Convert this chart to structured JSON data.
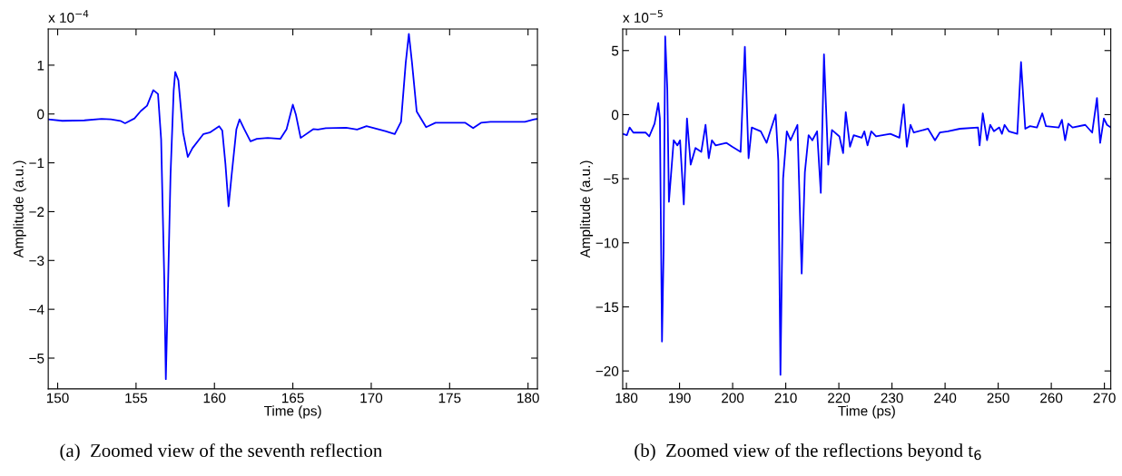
{
  "chart_data": [
    {
      "type": "line",
      "xlabel": "Time (ps)",
      "ylabel": "Amplitude (a.u.)",
      "xlim": [
        149.4,
        180.6
      ],
      "ylim": [
        -5.63,
        1.74
      ],
      "xticks": [
        150,
        155,
        160,
        165,
        170,
        175,
        180
      ],
      "yticks": [
        {
          "value": -5,
          "label": "−5"
        },
        {
          "value": -4,
          "label": "−4"
        },
        {
          "value": -3,
          "label": "−3"
        },
        {
          "value": -2,
          "label": "−2"
        },
        {
          "value": -1,
          "label": "−1"
        },
        0,
        1
      ],
      "grid": false,
      "legend": false,
      "annotations": [
        "x 10$^{−4}$",
        "(a)  Zoomed view of the seventh reflection"
      ],
      "series": [
        {
          "color": "#0000ff",
          "x": [
            149.4,
            150.3,
            151.7,
            152.8,
            153.4,
            154.0,
            154.3,
            154.9,
            155.3,
            155.7,
            156.1,
            156.4,
            156.6,
            156.8,
            156.9,
            157.0,
            157.2,
            157.4,
            157.5,
            157.7,
            158.0,
            158.3,
            158.6,
            159.3,
            159.7,
            160.3,
            160.5,
            160.7,
            160.9,
            161.1,
            161.4,
            161.6,
            161.9,
            162.3,
            162.7,
            163.4,
            164.2,
            164.6,
            165.0,
            165.2,
            165.5,
            166.3,
            166.6,
            167.1,
            168.4,
            169.1,
            169.7,
            170.9,
            171.5,
            171.9,
            172.2,
            172.4,
            172.6,
            172.9,
            173.5,
            174.1,
            176.0,
            176.5,
            177.0,
            177.6,
            179.8,
            180.4,
            180.6
          ],
          "values": [
            -0.11,
            -0.14,
            -0.13,
            -0.1,
            -0.11,
            -0.14,
            -0.19,
            -0.09,
            0.06,
            0.17,
            0.49,
            0.41,
            -0.52,
            -3.38,
            -5.43,
            -4.09,
            -1.24,
            0.48,
            0.86,
            0.69,
            -0.38,
            -0.88,
            -0.7,
            -0.41,
            -0.38,
            -0.25,
            -0.34,
            -1.02,
            -1.89,
            -1.24,
            -0.31,
            -0.11,
            -0.31,
            -0.56,
            -0.51,
            -0.49,
            -0.51,
            -0.31,
            0.19,
            -0.02,
            -0.49,
            -0.31,
            -0.32,
            -0.29,
            -0.28,
            -0.32,
            -0.25,
            -0.35,
            -0.41,
            -0.16,
            1.05,
            1.64,
            1.05,
            0.05,
            -0.27,
            -0.18,
            -0.18,
            -0.29,
            -0.18,
            -0.16,
            -0.16,
            -0.11,
            -0.1
          ]
        }
      ]
    },
    {
      "type": "line",
      "xlabel": "Time (ps)",
      "ylabel": "Amplitude (a.u.)",
      "xlim": [
        179.3,
        271.2
      ],
      "ylim": [
        -21.4,
        6.68
      ],
      "xticks": [
        180,
        190,
        200,
        210,
        220,
        230,
        240,
        250,
        260,
        270
      ],
      "yticks": [
        {
          "value": -20,
          "label": "−20"
        },
        {
          "value": -15,
          "label": "−15"
        },
        {
          "value": -10,
          "label": "−10"
        },
        {
          "value": -5,
          "label": "−5"
        },
        0,
        5
      ],
      "grid": false,
      "legend": false,
      "annotations": [
        "x 10$^{−5}$",
        "(b)  Zoomed view of the reflections beyond t$_{6}$"
      ],
      "series": [
        {
          "color": "#0000ff",
          "x": [
            179.3,
            180.1,
            180.6,
            181.3,
            183.6,
            184.3,
            185.3,
            186.0,
            186.3,
            186.7,
            187.0,
            187.3,
            187.7,
            188.0,
            188.9,
            189.6,
            190.1,
            190.8,
            191.4,
            192.1,
            193.0,
            194.1,
            194.9,
            195.5,
            196.1,
            196.8,
            198.8,
            199.9,
            201.5,
            202.3,
            203.0,
            203.6,
            205.3,
            206.4,
            207.0,
            208.1,
            208.6,
            209.0,
            209.5,
            210.2,
            210.9,
            212.2,
            213.0,
            213.6,
            214.3,
            215.0,
            215.9,
            216.6,
            217.2,
            218.0,
            218.7,
            220.1,
            220.8,
            221.3,
            222.1,
            222.8,
            224.3,
            224.8,
            225.4,
            226.1,
            227.0,
            229.7,
            231.4,
            232.2,
            232.8,
            233.5,
            234.1,
            236.8,
            238.1,
            239.0,
            240.5,
            242.8,
            246.2,
            246.5,
            247.1,
            247.9,
            248.5,
            249.2,
            250.2,
            250.7,
            251.2,
            252.0,
            253.6,
            254.3,
            255.1,
            256.0,
            257.3,
            258.3,
            259.0,
            261.4,
            262.0,
            262.6,
            263.2,
            264.0,
            266.4,
            267.7,
            268.6,
            269.2,
            269.9,
            270.5,
            271.2
          ],
          "values": [
            -1.5,
            -1.6,
            -1.0,
            -1.4,
            -1.4,
            -1.7,
            -0.7,
            0.9,
            -0.3,
            -17.7,
            -10.6,
            6.1,
            2.0,
            -6.8,
            -2.0,
            -2.4,
            -2.0,
            -7.0,
            -0.3,
            -3.9,
            -2.6,
            -2.9,
            -0.8,
            -3.4,
            -2.0,
            -2.4,
            -2.2,
            -2.5,
            -2.9,
            5.3,
            -3.4,
            -1.0,
            -1.3,
            -2.2,
            -1.4,
            0.0,
            -3.6,
            -20.3,
            -5.0,
            -1.3,
            -2.0,
            -0.8,
            -12.4,
            -4.5,
            -1.6,
            -2.0,
            -1.3,
            -6.1,
            4.7,
            -3.9,
            -1.2,
            -1.7,
            -3.0,
            0.2,
            -2.5,
            -1.6,
            -1.8,
            -1.3,
            -2.4,
            -1.3,
            -1.7,
            -1.5,
            -1.8,
            0.8,
            -2.5,
            -0.8,
            -1.4,
            -1.1,
            -2.0,
            -1.4,
            -1.3,
            -1.1,
            -1.0,
            -2.4,
            0.1,
            -2.0,
            -0.8,
            -1.3,
            -1.0,
            -1.5,
            -0.8,
            -1.3,
            -1.5,
            4.1,
            -1.1,
            -0.9,
            -1.0,
            0.1,
            -0.9,
            -1.0,
            -0.4,
            -2.0,
            -0.7,
            -1.0,
            -0.8,
            -1.4,
            1.3,
            -2.2,
            -0.3,
            -0.8,
            -1.0
          ]
        }
      ]
    }
  ]
}
